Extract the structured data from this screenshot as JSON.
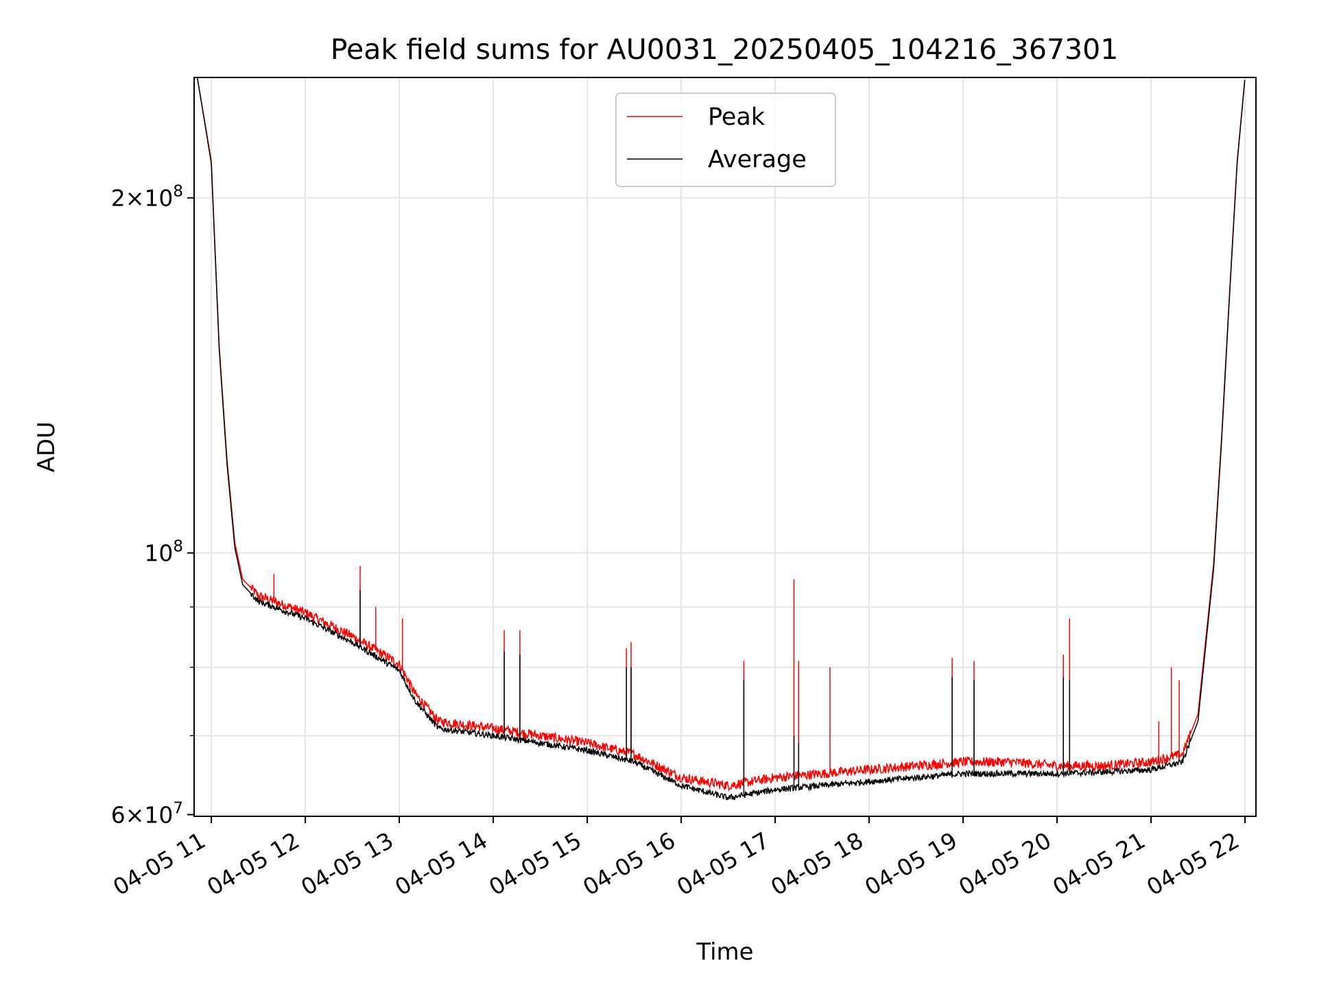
{
  "chart_data": {
    "type": "line",
    "title": "Peak field sums for AU0031_20250405_104216_367301",
    "xlabel": "Time",
    "ylabel": "ADU",
    "xlim": [
      "2025-04-05 10:49",
      "2025-04-05 22:07"
    ],
    "ylim": [
      59800000,
      253000000
    ],
    "yscale": "log",
    "grid": true,
    "legend_position": "top-center",
    "x_ticks": [
      "04-05 11",
      "04-05 12",
      "04-05 13",
      "04-05 14",
      "04-05 15",
      "04-05 16",
      "04-05 17",
      "04-05 18",
      "04-05 19",
      "04-05 20",
      "04-05 21",
      "04-05 22"
    ],
    "y_ticks": [
      {
        "value": 60000000,
        "mantissa": "6",
        "exponent": "7"
      },
      {
        "value": 100000000,
        "mantissa": "",
        "exponent": "8"
      },
      {
        "value": 200000000,
        "mantissa": "2",
        "exponent": "8"
      }
    ],
    "series": [
      {
        "name": "Peak",
        "color": "#ff0000",
        "points": [
          [
            "2025-04-05 10:51",
            253000000
          ],
          [
            "2025-04-05 11:00",
            215000000
          ],
          [
            "2025-04-05 11:05",
            150000000
          ],
          [
            "2025-04-05 11:10",
            120000000
          ],
          [
            "2025-04-05 11:15",
            102000000
          ],
          [
            "2025-04-05 11:20",
            95000000
          ],
          [
            "2025-04-05 11:30",
            92000000
          ],
          [
            "2025-04-05 12:00",
            89000000
          ],
          [
            "2025-04-05 12:30",
            85000000
          ],
          [
            "2025-04-05 13:00",
            80500000
          ],
          [
            "2025-04-05 13:10",
            76000000
          ],
          [
            "2025-04-05 13:25",
            72000000
          ],
          [
            "2025-04-05 14:00",
            71000000
          ],
          [
            "2025-04-05 14:30",
            70000000
          ],
          [
            "2025-04-05 15:00",
            69000000
          ],
          [
            "2025-04-05 15:30",
            67500000
          ],
          [
            "2025-04-05 16:00",
            64500000
          ],
          [
            "2025-04-05 16:30",
            63500000
          ],
          [
            "2025-04-05 17:00",
            64500000
          ],
          [
            "2025-04-05 17:30",
            65000000
          ],
          [
            "2025-04-05 18:00",
            65500000
          ],
          [
            "2025-04-05 18:30",
            66000000
          ],
          [
            "2025-04-05 19:00",
            66500000
          ],
          [
            "2025-04-05 19:30",
            66500000
          ],
          [
            "2025-04-05 20:00",
            66000000
          ],
          [
            "2025-04-05 20:30",
            66000000
          ],
          [
            "2025-04-05 21:00",
            66500000
          ],
          [
            "2025-04-05 21:20",
            67500000
          ],
          [
            "2025-04-05 21:30",
            73000000
          ],
          [
            "2025-04-05 21:40",
            98000000
          ],
          [
            "2025-04-05 21:45",
            125000000
          ],
          [
            "2025-04-05 21:50",
            165000000
          ],
          [
            "2025-04-05 21:55",
            215000000
          ],
          [
            "2025-04-05 22:00",
            253000000
          ]
        ],
        "spikes": [
          [
            "2025-04-05 11:40",
            96000000
          ],
          [
            "2025-04-05 12:35",
            97500000
          ],
          [
            "2025-04-05 12:45",
            90000000
          ],
          [
            "2025-04-05 13:02",
            88000000
          ],
          [
            "2025-04-05 14:07",
            86000000
          ],
          [
            "2025-04-05 14:17",
            86000000
          ],
          [
            "2025-04-05 15:25",
            83000000
          ],
          [
            "2025-04-05 15:28",
            84000000
          ],
          [
            "2025-04-05 16:40",
            81000000
          ],
          [
            "2025-04-05 17:12",
            95000000
          ],
          [
            "2025-04-05 17:15",
            81000000
          ],
          [
            "2025-04-05 17:35",
            80000000
          ],
          [
            "2025-04-05 18:53",
            81500000
          ],
          [
            "2025-04-05 19:07",
            81000000
          ],
          [
            "2025-04-05 20:04",
            82000000
          ],
          [
            "2025-04-05 20:08",
            88000000
          ],
          [
            "2025-04-05 21:05",
            72000000
          ],
          [
            "2025-04-05 21:13",
            80000000
          ],
          [
            "2025-04-05 21:18",
            78000000
          ]
        ]
      },
      {
        "name": "Average",
        "color": "#000000",
        "points": [
          [
            "2025-04-05 10:51",
            253000000
          ],
          [
            "2025-04-05 11:00",
            214000000
          ],
          [
            "2025-04-05 11:05",
            149000000
          ],
          [
            "2025-04-05 11:10",
            119000000
          ],
          [
            "2025-04-05 11:15",
            101000000
          ],
          [
            "2025-04-05 11:20",
            94000000
          ],
          [
            "2025-04-05 11:30",
            91000000
          ],
          [
            "2025-04-05 12:00",
            88000000
          ],
          [
            "2025-04-05 12:30",
            84000000
          ],
          [
            "2025-04-05 13:00",
            79500000
          ],
          [
            "2025-04-05 13:10",
            75000000
          ],
          [
            "2025-04-05 13:25",
            71000000
          ],
          [
            "2025-04-05 14:00",
            70000000
          ],
          [
            "2025-04-05 14:30",
            69000000
          ],
          [
            "2025-04-05 15:00",
            68000000
          ],
          [
            "2025-04-05 15:30",
            66500000
          ],
          [
            "2025-04-05 16:00",
            63500000
          ],
          [
            "2025-04-05 16:30",
            62000000
          ],
          [
            "2025-04-05 17:00",
            63000000
          ],
          [
            "2025-04-05 17:30",
            63500000
          ],
          [
            "2025-04-05 18:00",
            64000000
          ],
          [
            "2025-04-05 18:30",
            64500000
          ],
          [
            "2025-04-05 19:00",
            65000000
          ],
          [
            "2025-04-05 19:30",
            65000000
          ],
          [
            "2025-04-05 20:00",
            65000000
          ],
          [
            "2025-04-05 20:30",
            65200000
          ],
          [
            "2025-04-05 21:00",
            65500000
          ],
          [
            "2025-04-05 21:20",
            66500000
          ],
          [
            "2025-04-05 21:30",
            72000000
          ],
          [
            "2025-04-05 21:40",
            97000000
          ],
          [
            "2025-04-05 21:45",
            124000000
          ],
          [
            "2025-04-05 21:50",
            164000000
          ],
          [
            "2025-04-05 21:55",
            214000000
          ],
          [
            "2025-04-05 22:00",
            253000000
          ]
        ],
        "spikes": [
          [
            "2025-04-05 12:35",
            93000000
          ],
          [
            "2025-04-05 14:07",
            82500000
          ],
          [
            "2025-04-05 14:17",
            82000000
          ],
          [
            "2025-04-05 15:25",
            80000000
          ],
          [
            "2025-04-05 15:28",
            80000000
          ],
          [
            "2025-04-05 16:40",
            78000000
          ],
          [
            "2025-04-05 17:12",
            70000000
          ],
          [
            "2025-04-05 17:15",
            69000000
          ],
          [
            "2025-04-05 18:53",
            78500000
          ],
          [
            "2025-04-05 19:07",
            78000000
          ],
          [
            "2025-04-05 20:04",
            78500000
          ],
          [
            "2025-04-05 20:08",
            78000000
          ]
        ]
      }
    ]
  }
}
